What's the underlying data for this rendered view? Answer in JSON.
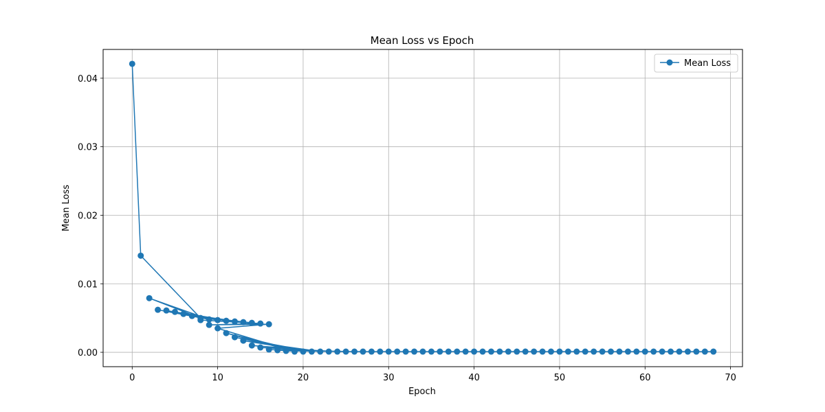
{
  "chart_data": {
    "type": "line",
    "title": "Mean Loss vs Epoch",
    "xlabel": "Epoch",
    "ylabel": "Mean Loss",
    "xlim": [
      -3.4,
      71.4
    ],
    "ylim": [
      -0.0021,
      0.0442
    ],
    "xticks": [
      0,
      10,
      20,
      30,
      40,
      50,
      60,
      70
    ],
    "yticks": [
      0.0,
      0.01,
      0.02,
      0.03,
      0.04
    ],
    "xtick_labels": [
      "0",
      "10",
      "20",
      "30",
      "40",
      "50",
      "60",
      "70"
    ],
    "ytick_labels": [
      "0.00",
      "0.01",
      "0.02",
      "0.03",
      "0.04"
    ],
    "grid": true,
    "legend_position": "top-right",
    "series": [
      {
        "name": "Mean Loss",
        "color": "#1f77b4",
        "marker": "circle",
        "points": [
          [
            0,
            0.0421
          ],
          [
            1,
            0.0141
          ],
          [
            8,
            0.005
          ],
          [
            2,
            0.0079
          ],
          [
            9,
            0.0048
          ],
          [
            3,
            0.0062
          ],
          [
            10,
            0.0047
          ],
          [
            4,
            0.0061
          ],
          [
            11,
            0.0046
          ],
          [
            5,
            0.0059
          ],
          [
            12,
            0.0045
          ],
          [
            6,
            0.0056
          ],
          [
            13,
            0.0044
          ],
          [
            7,
            0.0053
          ],
          [
            14,
            0.0043
          ],
          [
            8,
            0.0047
          ],
          [
            15,
            0.0042
          ],
          [
            9,
            0.004
          ],
          [
            16,
            0.0041
          ],
          [
            10,
            0.0035
          ],
          [
            19,
            0.0001
          ],
          [
            11,
            0.0028
          ],
          [
            20,
            0.0001
          ],
          [
            12,
            0.0022
          ],
          [
            21,
            0.0001
          ],
          [
            13,
            0.0017
          ],
          [
            22,
            0.0001
          ],
          [
            14,
            0.001
          ],
          [
            23,
            0.0001
          ],
          [
            15,
            0.0007
          ],
          [
            24,
            0.0001
          ],
          [
            16,
            0.0004
          ],
          [
            25,
            0.0001
          ],
          [
            17,
            0.0003
          ],
          [
            26,
            0.0001
          ],
          [
            18,
            0.0002
          ],
          [
            27,
            0.0001
          ],
          [
            28,
            0.0001
          ],
          [
            29,
            0.0001
          ],
          [
            30,
            0.0001
          ],
          [
            31,
            0.0001
          ],
          [
            32,
            0.0001
          ],
          [
            33,
            0.0001
          ],
          [
            34,
            0.0001
          ],
          [
            35,
            0.0001
          ],
          [
            36,
            0.0001
          ],
          [
            37,
            0.0001
          ],
          [
            38,
            0.0001
          ],
          [
            39,
            0.0001
          ],
          [
            40,
            0.0001
          ],
          [
            41,
            0.0001
          ],
          [
            42,
            0.0001
          ],
          [
            43,
            0.0001
          ],
          [
            44,
            0.0001
          ],
          [
            45,
            0.0001
          ],
          [
            46,
            0.0001
          ],
          [
            47,
            0.0001
          ],
          [
            48,
            0.0001
          ],
          [
            49,
            0.0001
          ],
          [
            50,
            0.0001
          ],
          [
            51,
            0.0001
          ],
          [
            52,
            0.0001
          ],
          [
            53,
            0.0001
          ],
          [
            54,
            0.0001
          ],
          [
            55,
            0.0001
          ],
          [
            56,
            0.0001
          ],
          [
            57,
            0.0001
          ],
          [
            58,
            0.0001
          ],
          [
            59,
            0.0001
          ],
          [
            60,
            0.0001
          ],
          [
            61,
            0.0001
          ],
          [
            62,
            0.0001
          ],
          [
            63,
            0.0001
          ],
          [
            64,
            0.0001
          ],
          [
            65,
            0.0001
          ],
          [
            66,
            0.0001
          ],
          [
            67,
            0.0001
          ],
          [
            68,
            0.0001
          ]
        ]
      }
    ]
  }
}
